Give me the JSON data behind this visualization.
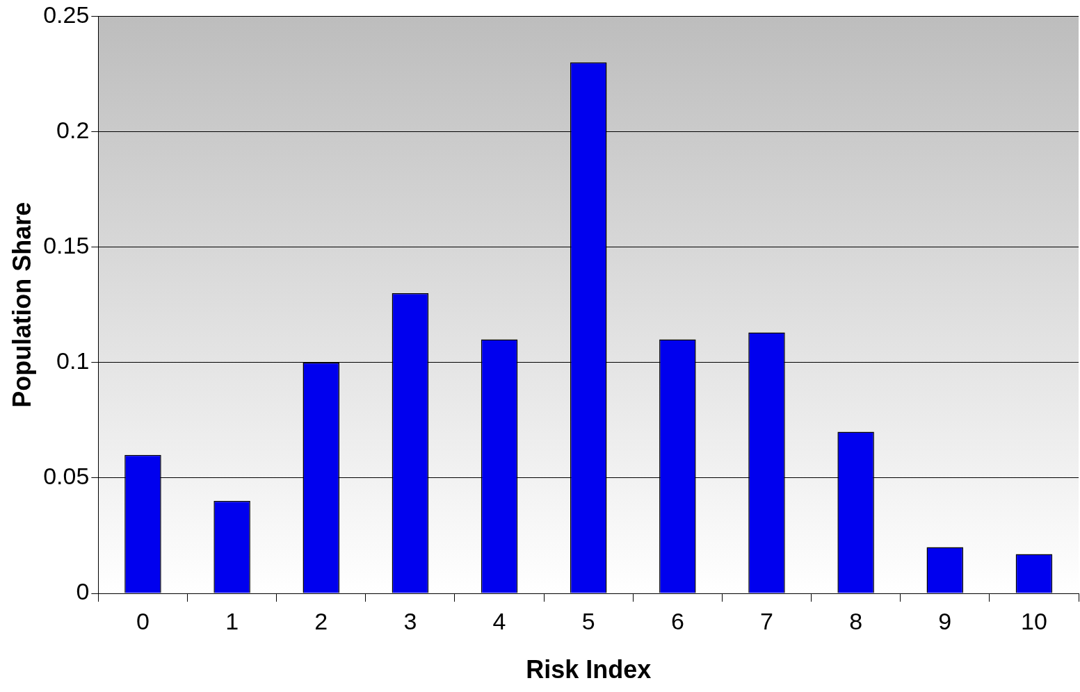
{
  "chart_data": {
    "type": "bar",
    "xlabel": "Risk Index",
    "ylabel": "Population Share",
    "categories": [
      "0",
      "1",
      "2",
      "3",
      "4",
      "5",
      "6",
      "7",
      "8",
      "9",
      "10"
    ],
    "values": [
      0.06,
      0.04,
      0.1,
      0.13,
      0.11,
      0.23,
      0.11,
      0.113,
      0.07,
      0.02,
      0.017
    ],
    "color": "#0000ee",
    "ylim": [
      0,
      0.25
    ],
    "yticks": [
      0,
      0.05,
      0.1,
      0.15,
      0.2,
      0.25
    ],
    "grid": "y",
    "legend": false
  }
}
